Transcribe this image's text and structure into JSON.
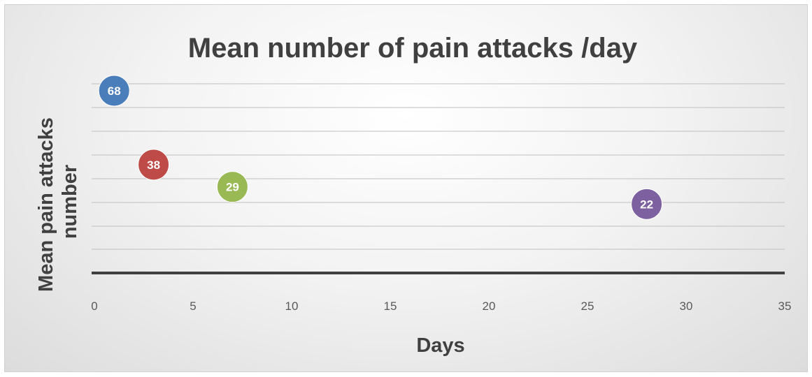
{
  "chart_data": {
    "type": "scatter",
    "title": "Mean number of pain attacks /day",
    "xlabel": "Days",
    "ylabel_lines": [
      "Mean pain attacks",
      "number"
    ],
    "xlim": [
      0,
      35
    ],
    "x_ticks": [
      "0",
      "5",
      "10",
      "15",
      "20",
      "25",
      "30",
      "35"
    ],
    "y_ticks_shown": false,
    "grid": true,
    "legend": "none",
    "points": [
      {
        "x": 1,
        "y": 68,
        "label": "68",
        "color": "#4a7ebb"
      },
      {
        "x": 3,
        "y": 38,
        "label": "38",
        "color": "#be4b48"
      },
      {
        "x": 7,
        "y": 29,
        "label": "29",
        "color": "#98b954"
      },
      {
        "x": 28,
        "y": 22,
        "label": "22",
        "color": "#7d60a0"
      }
    ]
  }
}
